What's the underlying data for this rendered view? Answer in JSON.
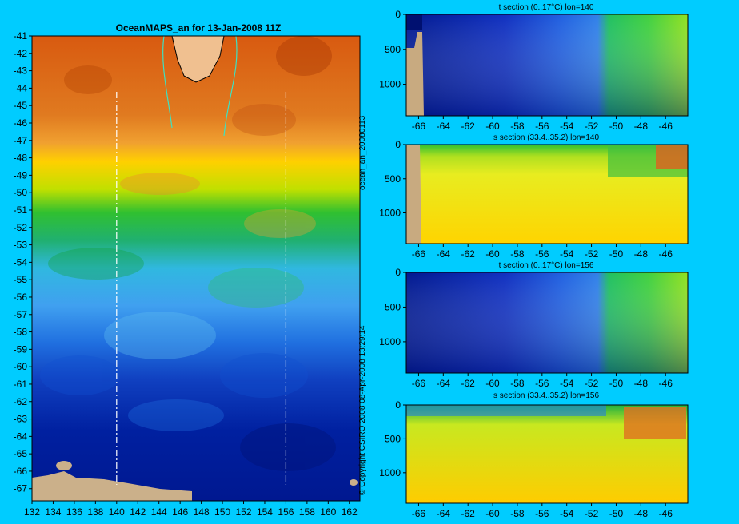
{
  "map": {
    "title": "OceanMAPS_an for 13-Jan-2008 11Z",
    "lat_ticks": [
      "-41",
      "-42",
      "-43",
      "-44",
      "-45",
      "-46",
      "-47",
      "-48",
      "-49",
      "-50",
      "-51",
      "-52",
      "-53",
      "-54",
      "-55",
      "-56",
      "-57",
      "-58",
      "-59",
      "-60",
      "-61",
      "-62",
      "-63",
      "-64",
      "-65",
      "-66",
      "-67"
    ],
    "lon_ticks": [
      "132",
      "134",
      "136",
      "138",
      "140",
      "142",
      "144",
      "146",
      "148",
      "150",
      "152",
      "154",
      "156",
      "158",
      "160",
      "162"
    ],
    "section_lines_lon": [
      140,
      156
    ],
    "side_label_top": "ocean_an_20080113",
    "side_label_bottom": "© Copyright CSIRO 2008   08-Apr-2008 13:29:14"
  },
  "panels": [
    {
      "title": "t section (0..17°C) lon=140",
      "variable": "t",
      "lon": 140
    },
    {
      "title": "s section (33.4..35.2) lon=140",
      "variable": "s",
      "lon": 140
    },
    {
      "title": "t section (0..17°C) lon=156",
      "variable": "t",
      "lon": 156
    },
    {
      "title": "s section (33.4..35.2) lon=156",
      "variable": "s",
      "lon": 156
    }
  ],
  "section_axes": {
    "x_ticks": [
      "-66",
      "-64",
      "-62",
      "-60",
      "-58",
      "-56",
      "-54",
      "-52",
      "-50",
      "-48",
      "-46"
    ],
    "y_ticks": [
      "0",
      "500",
      "1000"
    ]
  },
  "chart_data": [
    {
      "type": "heatmap",
      "title": "OceanMAPS_an for 13-Jan-2008 11Z",
      "x": [
        132,
        134,
        136,
        138,
        140,
        142,
        144,
        146,
        148,
        150,
        152,
        154,
        156,
        158,
        160,
        162
      ],
      "y": [
        -41,
        -42,
        -43,
        -44,
        -45,
        -46,
        -47,
        -48,
        -49,
        -50,
        -51,
        -52,
        -53,
        -54,
        -55,
        -56,
        -57,
        -58,
        -59,
        -60,
        -61,
        -62,
        -63,
        -64,
        -65,
        -66,
        -67
      ],
      "xlim": [
        132,
        163
      ],
      "ylim": [
        -67.7,
        -41
      ],
      "bands": [
        {
          "lat_from": -41,
          "lat_to": -47.5,
          "color": "#d86818"
        },
        {
          "lat_from": -47.5,
          "lat_to": -50,
          "color": "#ffd000"
        },
        {
          "lat_from": -50,
          "lat_to": -53,
          "color": "#30c030"
        },
        {
          "lat_from": -53,
          "lat_to": -56.5,
          "color": "#30b0e0"
        },
        {
          "lat_from": -56.5,
          "lat_to": -60,
          "color": "#2060e0"
        },
        {
          "lat_from": -60,
          "lat_to": -67.7,
          "color": "#0020a0"
        }
      ]
    },
    {
      "type": "heatmap",
      "title": "t section (0..17°C) lon=140",
      "x": [
        -66,
        -64,
        -62,
        -60,
        -58,
        -56,
        -54,
        -52,
        -50,
        -48,
        -46
      ],
      "xlim": [
        -67,
        -44.2
      ],
      "ylim": [
        1450,
        0
      ],
      "y_ticks": [
        0,
        500,
        1000
      ]
    },
    {
      "type": "heatmap",
      "title": "s section (33.4..35.2) lon=140",
      "x": [
        -66,
        -64,
        -62,
        -60,
        -58,
        -56,
        -54,
        -52,
        -50,
        -48,
        -46
      ],
      "xlim": [
        -67,
        -44.2
      ],
      "ylim": [
        1450,
        0
      ],
      "y_ticks": [
        0,
        500,
        1000
      ]
    },
    {
      "type": "heatmap",
      "title": "t section (0..17°C) lon=156",
      "x": [
        -66,
        -64,
        -62,
        -60,
        -58,
        -56,
        -54,
        -52,
        -50,
        -48,
        -46
      ],
      "xlim": [
        -67,
        -44.2
      ],
      "ylim": [
        1450,
        0
      ],
      "y_ticks": [
        0,
        500,
        1000
      ]
    },
    {
      "type": "heatmap",
      "title": "s section (33.4..35.2) lon=156",
      "x": [
        -66,
        -64,
        -62,
        -60,
        -58,
        -56,
        -54,
        -52,
        -50,
        -48,
        -46
      ],
      "xlim": [
        -67,
        -44.2
      ],
      "ylim": [
        1450,
        0
      ],
      "y_ticks": [
        0,
        500,
        1000
      ]
    }
  ]
}
